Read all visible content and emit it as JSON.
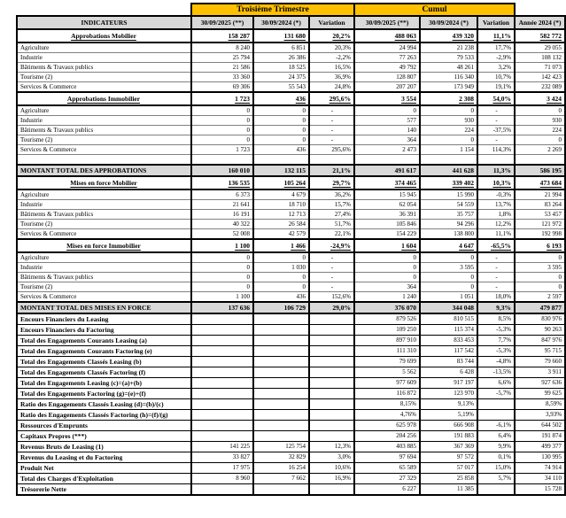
{
  "band": {
    "q3_label": "Troisième Trimestre",
    "cumul_label": "Cumul"
  },
  "columns": [
    "INDICATEURS",
    "30/09/2025 (**)",
    "30/09/2024 (*)",
    "Variation",
    "30/09/2025 (**)",
    "30/09/2024 (*)",
    "Variation",
    "Année 2024 (*)"
  ],
  "colors": {
    "band_bg": "#FFC000",
    "header_bg": "#D9D9D9",
    "total_row_bg": "#D9D9D9",
    "border": "#000000"
  },
  "rows": [
    {
      "type": "section",
      "label": "Approbations Mobilier",
      "values": [
        "158 287",
        "131 680",
        "20,2%",
        "488 063",
        "439 320",
        "11,1%",
        "582 772"
      ]
    },
    {
      "type": "item",
      "label": "Agriculture",
      "values": [
        "8 240",
        "6 851",
        "20,3%",
        "24 994",
        "21 238",
        "17,7%",
        "29 055"
      ]
    },
    {
      "type": "item",
      "label": "Industrie",
      "values": [
        "25 794",
        "26 386",
        "-2,2%",
        "77 263",
        "79 533",
        "-2,9%",
        "108 132"
      ]
    },
    {
      "type": "item",
      "label": "Bâtiments & Travaux publics",
      "values": [
        "21 586",
        "18 525",
        "16,5%",
        "49 792",
        "48 261",
        "3,2%",
        "71 073"
      ]
    },
    {
      "type": "item",
      "label": "Tourisme (2)",
      "values": [
        "33 360",
        "24 375",
        "36,9%",
        "128 807",
        "116 340",
        "10,7%",
        "142 423"
      ]
    },
    {
      "type": "item",
      "label": "Services & Commerce",
      "values": [
        "69 306",
        "55 543",
        "24,8%",
        "207 207",
        "173 949",
        "19,1%",
        "232 089"
      ]
    },
    {
      "type": "section",
      "label": "Approbations Immobilier",
      "values": [
        "1 723",
        "436",
        "295,6%",
        "3 554",
        "2 308",
        "54,0%",
        "3 424"
      ]
    },
    {
      "type": "item",
      "label": "Agriculture",
      "values": [
        "0",
        "0",
        "-",
        "0",
        "0",
        "-",
        "0"
      ]
    },
    {
      "type": "item",
      "label": "Industrie",
      "values": [
        "0",
        "0",
        "-",
        "577",
        "930",
        "-",
        "930"
      ]
    },
    {
      "type": "item",
      "label": "Bâtiments & Travaux publics",
      "values": [
        "0",
        "0",
        "-",
        "140",
        "224",
        "-37,5%",
        "224"
      ]
    },
    {
      "type": "item",
      "label": "Tourisme (2)",
      "values": [
        "0",
        "0",
        "-",
        "364",
        "0",
        "-",
        "0"
      ]
    },
    {
      "type": "item",
      "label": "Services & Commerce",
      "values": [
        "1 723",
        "436",
        "295,6%",
        "2 473",
        "1 154",
        "114,3%",
        "2 269"
      ]
    },
    {
      "type": "blank",
      "label": "",
      "values": [
        "",
        "",
        "",
        "",
        "",
        "",
        ""
      ]
    },
    {
      "type": "total",
      "label": "MONTANT TOTAL  DES APPROBATIONS",
      "values": [
        "160 010",
        "132 115",
        "21,1%",
        "491 617",
        "441 628",
        "11,3%",
        "586 195"
      ]
    },
    {
      "type": "section",
      "label": "Mises en force Mobilier",
      "values": [
        "136 535",
        "105 264",
        "29,7%",
        "374 465",
        "339 402",
        "10,3%",
        "473 684"
      ]
    },
    {
      "type": "item",
      "label": "Agriculture",
      "values": [
        "6 373",
        "4 679",
        "36,2%",
        "15 945",
        "15 990",
        "-0,3%",
        "21 994"
      ]
    },
    {
      "type": "item",
      "label": "Industrie",
      "values": [
        "21 641",
        "18 710",
        "15,7%",
        "62 054",
        "54 559",
        "13,7%",
        "83 264"
      ]
    },
    {
      "type": "item",
      "label": "Bâtiments & Travaux publics",
      "values": [
        "16 191",
        "12 713",
        "27,4%",
        "36 391",
        "35 757",
        "1,8%",
        "53 457"
      ]
    },
    {
      "type": "item",
      "label": "Tourisme (2)",
      "values": [
        "40 322",
        "26 584",
        "51,7%",
        "105 846",
        "94 296",
        "12,2%",
        "121 972"
      ]
    },
    {
      "type": "item",
      "label": "Services & Commerce",
      "values": [
        "52 008",
        "42 579",
        "22,1%",
        "154 229",
        "138 800",
        "11,1%",
        "192 998"
      ]
    },
    {
      "type": "section",
      "label": "Mises en force Immobilier",
      "values": [
        "1 100",
        "1 466",
        "-24,9%",
        "1 604",
        "4 647",
        "-65,5%",
        "6 193"
      ]
    },
    {
      "type": "item",
      "label": "Agriculture",
      "values": [
        "0",
        "0",
        "-",
        "0",
        "0",
        "-",
        "0"
      ]
    },
    {
      "type": "item",
      "label": "Industrie",
      "values": [
        "0",
        "1 030",
        "-",
        "0",
        "3 595",
        "-",
        "3 595"
      ]
    },
    {
      "type": "item",
      "label": "Bâtiments & Travaux publics",
      "values": [
        "0",
        "0",
        "-",
        "0",
        "0",
        "-",
        "0"
      ]
    },
    {
      "type": "item",
      "label": "Tourisme (2)",
      "values": [
        "0",
        "0",
        "-",
        "364",
        "0",
        "-",
        "0"
      ]
    },
    {
      "type": "item",
      "label": "Services & Commerce",
      "values": [
        "1 100",
        "436",
        "152,6%",
        "1 240",
        "1 051",
        "18,0%",
        "2 597"
      ]
    },
    {
      "type": "total",
      "label": "MONTANT TOTAL  DES MISES EN FORCE",
      "values": [
        "137 636",
        "106 729",
        "29,0%",
        "376 070",
        "344 048",
        "9,3%",
        "479 877"
      ]
    },
    {
      "type": "metric",
      "label": "Encours Financiers du Leasing",
      "values": [
        "",
        "",
        "",
        "879 526",
        "810 515",
        "8,5%",
        "830 976"
      ]
    },
    {
      "type": "metric",
      "label": "Encours Financiers du Factoring",
      "values": [
        "",
        "",
        "",
        "109 250",
        "115 374",
        "-5,3%",
        "90 263"
      ]
    },
    {
      "type": "metric",
      "label": "Total des  Engagements Courants Leasing (a)",
      "values": [
        "",
        "",
        "",
        "897 910",
        "833 453",
        "7,7%",
        "847 976"
      ]
    },
    {
      "type": "metric",
      "label": "Total des  Engagements Courants Factoring (e)",
      "values": [
        "",
        "",
        "",
        "111 310",
        "117 542",
        "-5,3%",
        "95 715"
      ]
    },
    {
      "type": "metric",
      "label": "Total des Engagements Classés Leasing  (b)",
      "values": [
        "",
        "",
        "",
        "79 699",
        "83 744",
        "-4,8%",
        "79 660"
      ]
    },
    {
      "type": "metric",
      "label": "Total des Engagements Classés Factoring  (f)",
      "values": [
        "",
        "",
        "",
        "5 562",
        "6 428",
        "-13,5%",
        "3 911"
      ]
    },
    {
      "type": "metric",
      "label": "Total des Engagements Leasing (c)=(a)+(b)",
      "values": [
        "",
        "",
        "",
        "977 609",
        "917 197",
        "6,6%",
        "927 636"
      ]
    },
    {
      "type": "metric",
      "label": "Total des Engagements Factoring (g)=(e)+(f)",
      "values": [
        "",
        "",
        "",
        "116 872",
        "123 970",
        "-5,7%",
        "99 625"
      ]
    },
    {
      "type": "metric",
      "label": "Ratio des Engagements Classés Leasing (d)=(b)/(c)",
      "values": [
        "",
        "",
        "",
        "8,15%",
        "9,13%",
        "",
        "8,59%"
      ]
    },
    {
      "type": "metric",
      "label": "Ratio des Engagements Classés Factoring (h)=(f)/(g)",
      "values": [
        "",
        "",
        "",
        "4,76%",
        "5,19%",
        "",
        "3,93%"
      ]
    },
    {
      "type": "metric",
      "label": "Ressources d'Emprunts",
      "values": [
        "",
        "",
        "",
        "625 978",
        "666 908",
        "-6,1%",
        "644 502"
      ]
    },
    {
      "type": "metric",
      "label": "Capitaux Propres (***)",
      "values": [
        "",
        "",
        "",
        "204 256",
        "191 883",
        "6,4%",
        "191 874"
      ]
    },
    {
      "type": "metric",
      "label": "Revenus Bruts de Leasing (1)",
      "values": [
        "141 225",
        "125 754",
        "12,3%",
        "403 885",
        "367 369",
        "9,9%",
        "499 377"
      ]
    },
    {
      "type": "metric",
      "label": "Revenus  du Leasing et du Factoring",
      "values": [
        "33 827",
        "32 829",
        "3,0%",
        "97 694",
        "97 572",
        "0,1%",
        "130 995"
      ]
    },
    {
      "type": "metric",
      "label": "Produit Net",
      "values": [
        "17 975",
        "16 254",
        "10,6%",
        "65 589",
        "57 017",
        "15,0%",
        "74 914"
      ]
    },
    {
      "type": "metric",
      "label": "Total des Charges d'Exploitation",
      "values": [
        "8 960",
        "7 662",
        "16,9%",
        "27 329",
        "25 858",
        "5,7%",
        "34 110"
      ]
    },
    {
      "type": "metric",
      "label": "Trésorerie Nette",
      "values": [
        "",
        "",
        "",
        "6 227",
        "11 385",
        "",
        "15 728"
      ]
    }
  ]
}
